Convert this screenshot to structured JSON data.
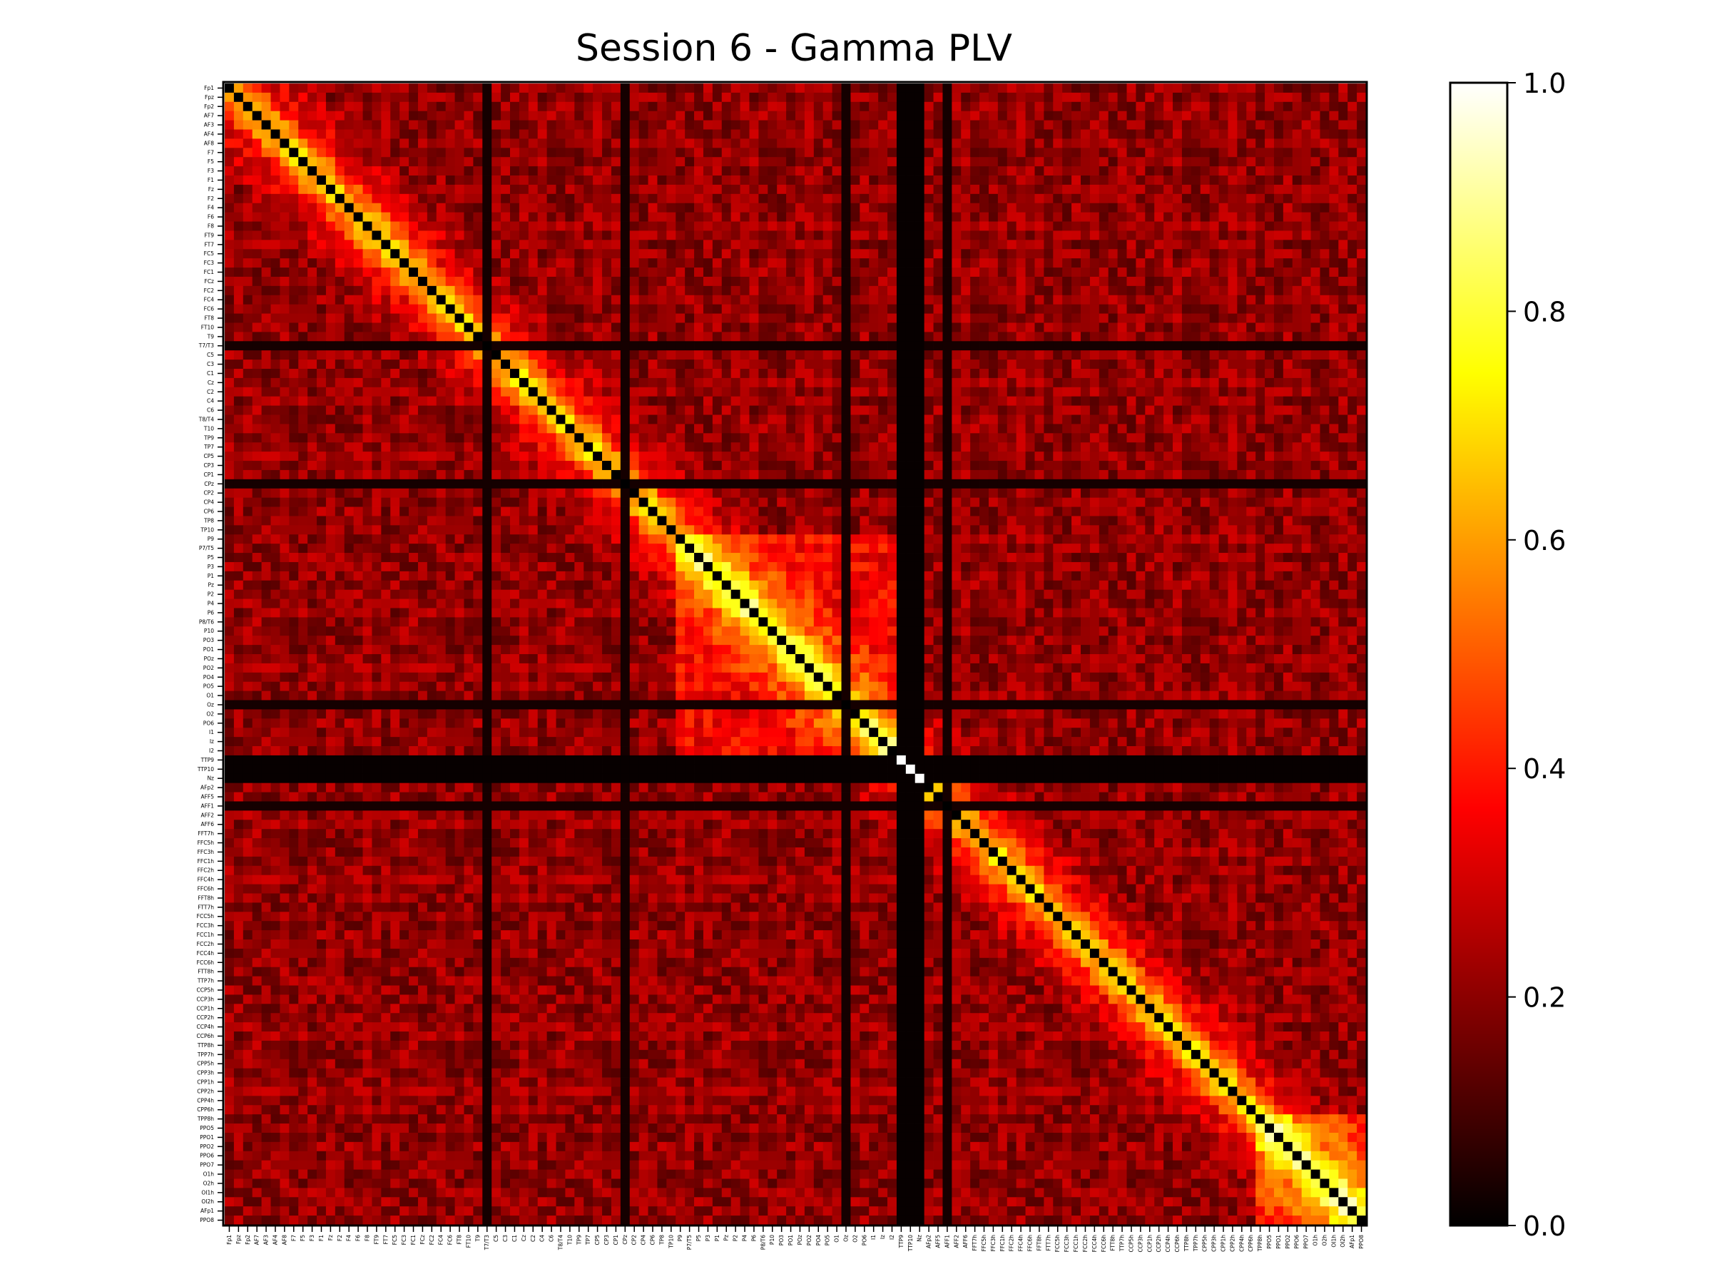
{
  "chart_data": {
    "type": "heatmap",
    "title": "Session 6 - Gamma PLV",
    "xlabel": "",
    "ylabel": "",
    "colormap": "hot",
    "color_range": [
      0.0,
      1.0
    ],
    "colorbar_ticks": [
      "0.0",
      "0.2",
      "0.4",
      "0.6",
      "0.8",
      "1.0"
    ],
    "channels": [
      "Fp1",
      "Fpz",
      "Fp2",
      "AF7",
      "AF3",
      "AF4",
      "AF8",
      "F7",
      "F5",
      "F3",
      "F1",
      "Fz",
      "F2",
      "F4",
      "F6",
      "F8",
      "FT9",
      "FT7",
      "FC5",
      "FC3",
      "FC1",
      "FCz",
      "FC2",
      "FC4",
      "FC6",
      "FT8",
      "FT10",
      "T9",
      "T7/T3",
      "C5",
      "C3",
      "C1",
      "Cz",
      "C2",
      "C4",
      "C6",
      "T8/T4",
      "T10",
      "TP9",
      "TP7",
      "CP5",
      "CP3",
      "CP1",
      "CPz",
      "CP2",
      "CP4",
      "CP6",
      "TP8",
      "TP10",
      "P9",
      "P7/T5",
      "P5",
      "P3",
      "P1",
      "Pz",
      "P2",
      "P4",
      "P6",
      "P8/T6",
      "P10",
      "PO3",
      "PO1",
      "POz",
      "PO2",
      "PO4",
      "PO5",
      "O1",
      "Oz",
      "O2",
      "PO6",
      "I1",
      "Iz",
      "I2",
      "TTP9",
      "TTP10",
      "Nz",
      "AFp2",
      "AFF5",
      "AFF1",
      "AFF2",
      "AFF6",
      "FFT7h",
      "FFC5h",
      "FFC3h",
      "FFC1h",
      "FFC2h",
      "FFC4h",
      "FFC6h",
      "FFT8h",
      "FTT7h",
      "FCC5h",
      "FCC3h",
      "FCC1h",
      "FCC2h",
      "FCC4h",
      "FCC6h",
      "FTT8h",
      "TTP7h",
      "CCP5h",
      "CCP3h",
      "CCP1h",
      "CCP2h",
      "CCP4h",
      "CCP6h",
      "TTP8h",
      "TPP7h",
      "CPP5h",
      "CPP3h",
      "CPP1h",
      "CPP2h",
      "CPP4h",
      "CPP6h",
      "TPP8h",
      "PPO5",
      "PPO1",
      "PPO2",
      "PPO6",
      "PPO7",
      "O1h",
      "O2h",
      "OI1h",
      "OI2h",
      "AFp1",
      "PPO8"
    ],
    "saturated_channels": [
      "T7/T3",
      "CPz",
      "Oz",
      "AFF1"
    ],
    "dead_channels": [
      "TTP9",
      "TTP10",
      "Nz"
    ]
  }
}
